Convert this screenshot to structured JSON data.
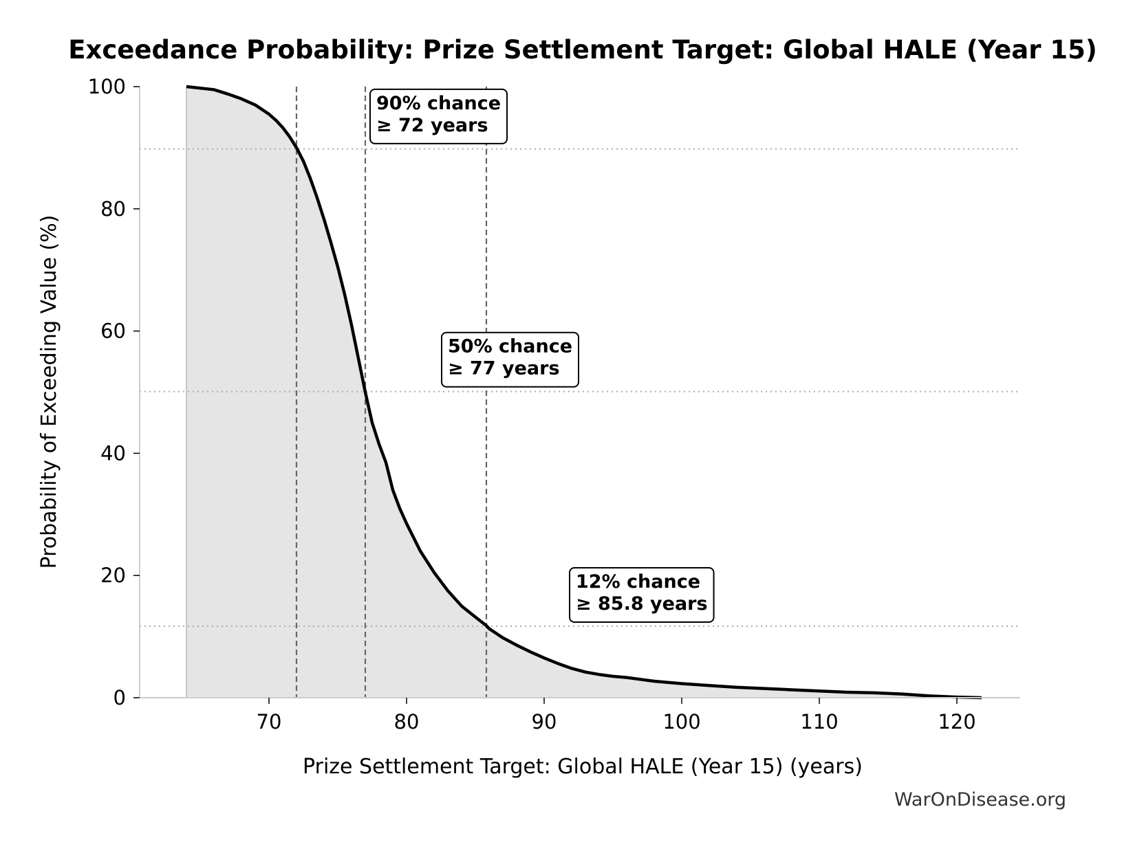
{
  "chart_data": {
    "type": "area",
    "title": "Exceedance Probability: Prize Settlement Target: Global HALE (Year 15)",
    "xlabel": "Prize Settlement Target: Global HALE (Year 15) (years)",
    "ylabel": "Probability of Exceeding Value (%)",
    "xlim": [
      60.6,
      124.6
    ],
    "ylim": [
      0,
      100
    ],
    "x_ticks": [
      70,
      80,
      90,
      100,
      110,
      120
    ],
    "y_ticks": [
      0,
      20,
      40,
      60,
      80,
      100
    ],
    "grid": false,
    "series": [
      {
        "x": [
          64,
          66,
          67,
          68,
          69,
          70,
          70.5,
          71,
          71.5,
          72,
          72.5,
          73,
          73.5,
          74,
          74.5,
          75,
          75.5,
          76,
          76.5,
          77,
          77.5,
          78,
          78.5,
          79,
          79.5,
          80,
          81,
          82,
          83,
          84,
          85,
          85.8,
          86,
          87,
          88,
          89,
          90,
          91,
          92,
          93,
          94,
          95,
          96,
          97,
          98,
          100,
          102,
          104,
          106,
          108,
          110,
          112,
          114,
          116,
          118,
          120,
          121.8
        ],
        "y": [
          100,
          99.5,
          98.8,
          98.0,
          97.0,
          95.5,
          94.5,
          93.3,
          91.8,
          90.0,
          87.8,
          85.0,
          81.8,
          78.3,
          74.5,
          70.5,
          66.0,
          61.0,
          55.5,
          50.0,
          45.0,
          41.5,
          38.5,
          34.0,
          31.0,
          28.5,
          24.0,
          20.5,
          17.5,
          15.0,
          13.2,
          11.8,
          11.3,
          9.8,
          8.6,
          7.5,
          6.5,
          5.6,
          4.8,
          4.2,
          3.8,
          3.5,
          3.3,
          3.0,
          2.7,
          2.3,
          2.0,
          1.7,
          1.5,
          1.3,
          1.1,
          0.9,
          0.8,
          0.6,
          0.3,
          0.1,
          0.0
        ]
      }
    ],
    "reference_lines": {
      "x": [
        72,
        77,
        85.8
      ],
      "y": [
        89.8,
        50.1,
        11.7
      ]
    },
    "annotations": [
      {
        "line1": "90% chance",
        "line2": "≥ 72 years",
        "x": 77.8,
        "y": 96.3
      },
      {
        "line1": "50% chance",
        "line2": "≥ 77 years",
        "x": 83.0,
        "y": 56.5
      },
      {
        "line1": "12% chance",
        "line2": "≥ 85.8 years",
        "x": 92.3,
        "y": 18.0
      }
    ],
    "colors": {
      "line": "#000000",
      "fill": "#e5e5e5",
      "reference_line": "#666666",
      "threshold_line": "#aaaaaa"
    }
  },
  "footer": {
    "credit": "WarOnDisease.org"
  }
}
